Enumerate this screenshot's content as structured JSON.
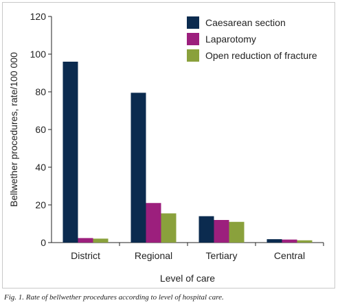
{
  "caption": "Fig. 1. Rate of bellwether procedures according to level of hospital care.",
  "colors": {
    "axis": "#222222",
    "background": "#ffffff"
  },
  "chart_data": {
    "type": "bar",
    "title": "",
    "xlabel": "Level of care",
    "ylabel": "Bellwether procedures, rate/100 000",
    "categories": [
      "District",
      "Regional",
      "Tertiary",
      "Central"
    ],
    "ylim": [
      0,
      120
    ],
    "yticks": [
      0,
      20,
      40,
      60,
      80,
      100,
      120
    ],
    "grid": false,
    "legend_position": "top-right",
    "series": [
      {
        "name": "Caesarean section",
        "color": "#0b2b4f",
        "values": [
          96,
          79.5,
          14,
          1.8
        ]
      },
      {
        "name": "Laparotomy",
        "color": "#9c1f7d",
        "values": [
          2.4,
          21,
          12,
          1.6
        ]
      },
      {
        "name": "Open reduction of fracture",
        "color": "#8aa13c",
        "values": [
          2.1,
          15.5,
          11,
          1.2
        ]
      }
    ]
  }
}
